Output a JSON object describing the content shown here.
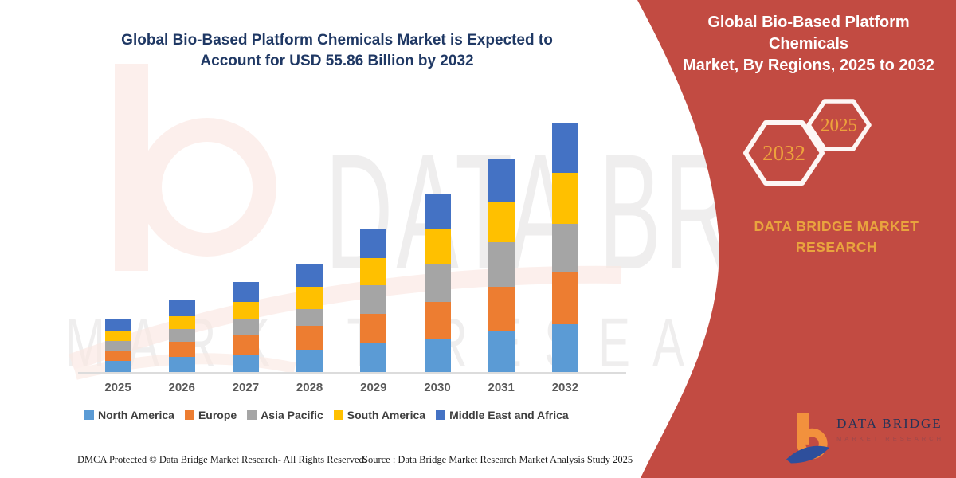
{
  "chart_title": {
    "line1": "Global Bio-Based Platform Chemicals Market is Expected to",
    "line2": "Account for USD 55.86 Billion by 2032"
  },
  "banner": {
    "color": "#c24b42",
    "gold": "#e9a43e",
    "title_line1": "Global Bio-Based Platform Chemicals",
    "title_line2": "Market, By Regions, 2025 to 2032",
    "hex_left_year": "2032",
    "hex_right_year": "2025",
    "brand_line1": "DATA BRIDGE MARKET",
    "brand_line2": "RESEARCH"
  },
  "watermark": {
    "line1": "DATA BRIDGE",
    "line2": "MARKET RESEARCH"
  },
  "logo": {
    "name": "DATA BRIDGE",
    "subtitle": "MARKET RESEARCH"
  },
  "footer": {
    "dmca": "DMCA Protected © Data Bridge Market Research- All Rights Reserved.",
    "source": "Source : Data Bridge Market Research Market Analysis Study 2025"
  },
  "chart_data": {
    "type": "bar",
    "stacked": true,
    "title": "Global Bio-Based Platform Chemicals Market is Expected to Account for USD 55.86 Billion by 2032",
    "unit": "USD Billion",
    "categories": [
      "2025",
      "2026",
      "2027",
      "2028",
      "2029",
      "2030",
      "2031",
      "2032"
    ],
    "series": [
      {
        "name": "North America",
        "color": "#5b9bd5",
        "values": [
          2.57,
          3.36,
          3.95,
          5.08,
          6.41,
          7.49,
          9.16,
          10.78
        ]
      },
      {
        "name": "Europe",
        "color": "#ed7d31",
        "values": [
          2.1,
          3.41,
          4.31,
          5.21,
          6.7,
          8.26,
          10.0,
          11.67
        ]
      },
      {
        "name": "Asia Pacific",
        "color": "#a5a5a5",
        "values": [
          2.21,
          2.82,
          3.72,
          3.9,
          6.29,
          8.32,
          9.88,
          10.78
        ]
      },
      {
        "name": "South America",
        "color": "#ffc000",
        "values": [
          2.39,
          3.0,
          3.77,
          4.9,
          6.18,
          8.14,
          9.16,
          11.37
        ]
      },
      {
        "name": "Middle East and Africa",
        "color": "#4472c4",
        "values": [
          2.57,
          3.47,
          4.49,
          4.97,
          6.34,
          7.61,
          9.7,
          11.26
        ]
      }
    ],
    "totals": [
      11.84,
      16.06,
      20.24,
      24.06,
      31.92,
      39.82,
      47.9,
      55.86
    ],
    "ylim": [
      0,
      56
    ],
    "grid": false,
    "y_axis_visible": false,
    "legend_position": "bottom",
    "annotation": "USD 55.86 Billion by 2032"
  }
}
